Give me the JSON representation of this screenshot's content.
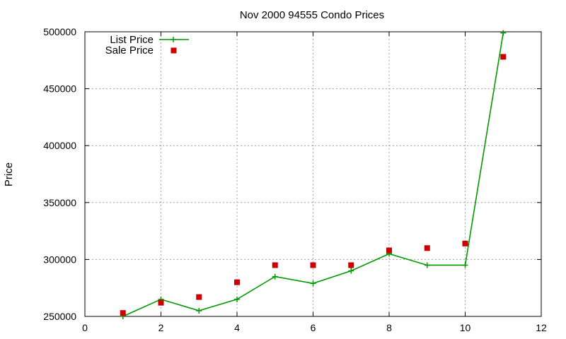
{
  "chart_data": {
    "type": "line",
    "title": "Nov 2000 94555 Condo Prices",
    "xlabel": "",
    "ylabel": "Price",
    "xlim": [
      0,
      12
    ],
    "ylim": [
      250000,
      500000
    ],
    "xticks": [
      "0",
      "2",
      "4",
      "6",
      "8",
      "10",
      "12"
    ],
    "yticks": [
      "250000",
      "300000",
      "350000",
      "400000",
      "450000",
      "500000"
    ],
    "grid": true,
    "legend_position": "top-left",
    "series": [
      {
        "name": "List Price",
        "style": "line+cross",
        "color": "#009900",
        "x": [
          1,
          2,
          3,
          4,
          5,
          6,
          7,
          8,
          9,
          10,
          11
        ],
        "y": [
          250000,
          265000,
          255000,
          265000,
          285000,
          279000,
          290000,
          305000,
          295000,
          295000,
          499000
        ]
      },
      {
        "name": "Sale Price",
        "style": "square",
        "color": "#cc0000",
        "x": [
          1,
          2,
          3,
          4,
          5,
          6,
          7,
          8,
          9,
          10,
          11
        ],
        "y": [
          253000,
          262000,
          267000,
          280000,
          295000,
          295000,
          295000,
          308000,
          310000,
          314000,
          478000
        ]
      }
    ]
  }
}
